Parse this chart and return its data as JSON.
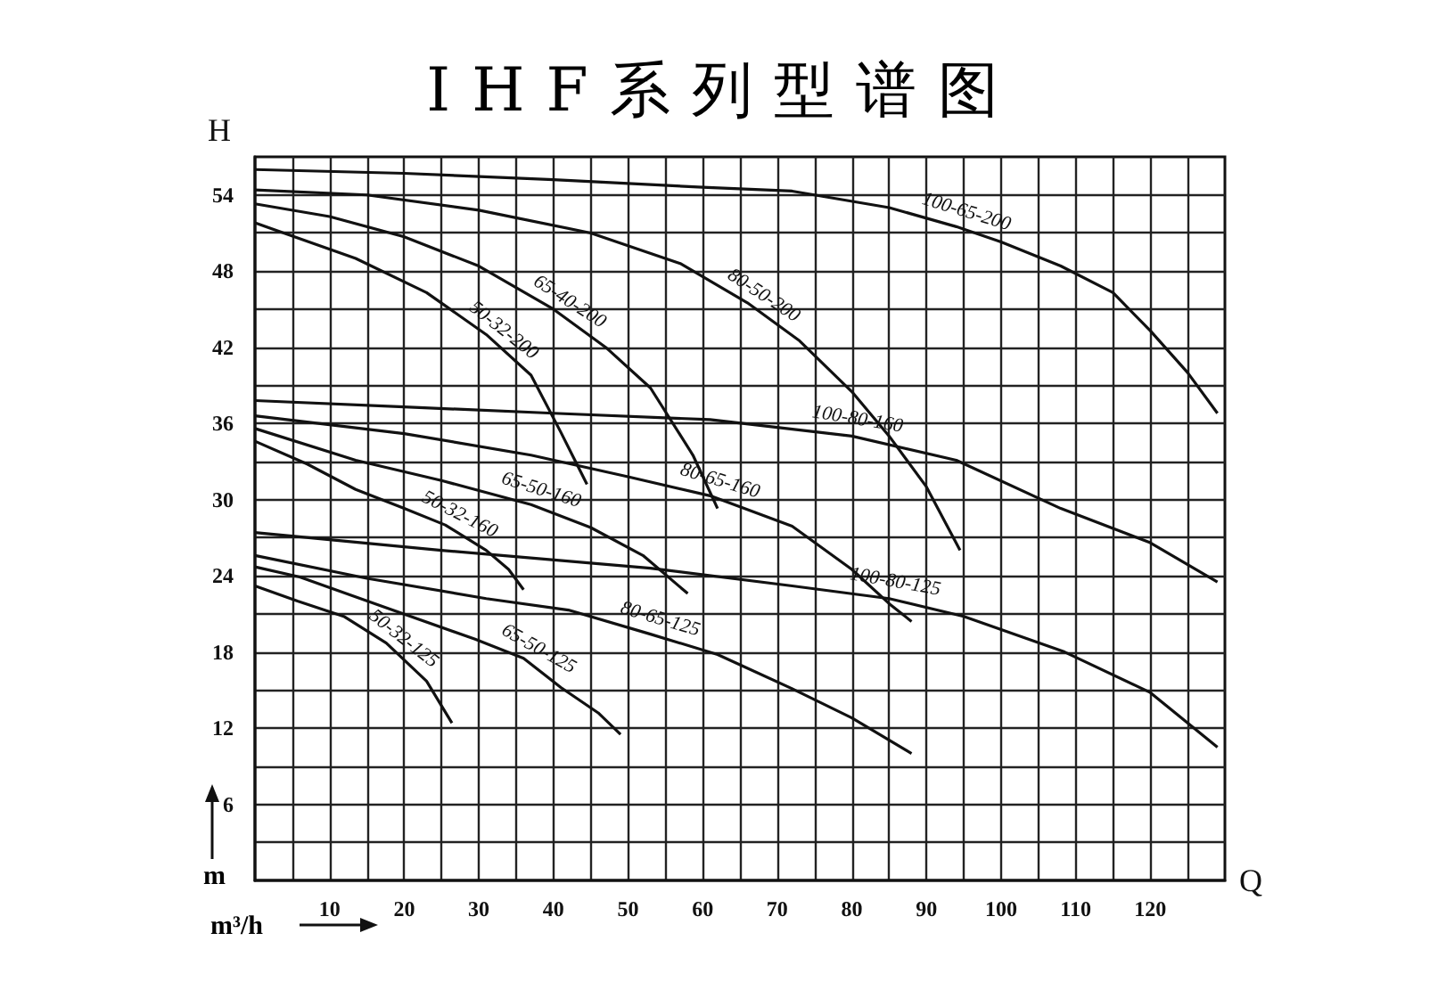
{
  "chart_data": {
    "type": "line",
    "title": "IHF系列型谱图",
    "xlabel": "Q",
    "ylabel": "H",
    "annotations": [
      "m³/h",
      "m"
    ],
    "xlim": [
      0,
      130
    ],
    "ylim": [
      0,
      57
    ],
    "xticks": [
      {
        "value": 5,
        "label": null
      },
      10,
      {
        "value": 15,
        "label": null
      },
      20,
      {
        "value": 25,
        "label": null
      },
      30,
      {
        "value": 35,
        "label": null
      },
      40,
      {
        "value": 45,
        "label": null
      },
      50,
      {
        "value": 55,
        "label": null
      },
      60,
      {
        "value": 65,
        "label": null
      },
      70,
      {
        "value": 75,
        "label": null
      },
      80,
      {
        "value": 85,
        "label": null
      },
      90,
      {
        "value": 95,
        "label": null
      },
      100,
      {
        "value": 105,
        "label": null
      },
      110,
      {
        "value": 115,
        "label": null
      },
      120,
      {
        "value": 125,
        "label": null
      }
    ],
    "yticks": [
      {
        "value": 3,
        "label": null
      },
      6,
      {
        "value": 9,
        "label": null
      },
      12,
      {
        "value": 15,
        "label": null
      },
      18,
      {
        "value": 21,
        "label": null
      },
      24,
      {
        "value": 27,
        "label": null
      },
      30,
      {
        "value": 33,
        "label": null
      },
      36,
      {
        "value": 39,
        "label": null
      },
      42,
      {
        "value": 45,
        "label": null
      },
      48,
      {
        "value": 51,
        "label": null
      },
      54
    ],
    "grid": true,
    "legend": false,
    "marker": "none",
    "line_style": "solid",
    "series": [
      {
        "name": "100-65-200",
        "color": "#111111",
        "x": [
          0,
          20,
          40,
          60,
          72,
          85,
          94,
          100,
          108,
          115,
          120,
          125,
          129
        ],
        "values": [
          56,
          55.7,
          55.2,
          54.6,
          54.3,
          53,
          51.5,
          50.3,
          48.4,
          46.3,
          43.3,
          40,
          36.8
        ]
      },
      {
        "name": "80-50-200",
        "color": "#111111",
        "x": [
          0,
          15,
          30,
          45,
          57,
          66,
          73,
          80,
          85,
          90,
          94.5
        ],
        "values": [
          54.4,
          54,
          52.8,
          51,
          48.6,
          45.5,
          42.5,
          38.5,
          35,
          31,
          26
        ]
      },
      {
        "name": "65-40-200",
        "color": "#111111",
        "x": [
          0,
          10,
          20,
          30,
          40,
          47,
          53,
          58.7,
          62
        ],
        "values": [
          53.3,
          52.3,
          50.7,
          48.4,
          45,
          42,
          38.8,
          33.5,
          29.3
        ]
      },
      {
        "name": "50-32-200",
        "color": "#111111",
        "x": [
          0,
          13.5,
          23,
          31,
          37,
          41,
          44.5
        ],
        "values": [
          51.8,
          49,
          46.3,
          43,
          39.8,
          35.3,
          31.2
        ]
      },
      {
        "name": "100-80-160",
        "color": "#111111",
        "x": [
          0,
          20,
          40,
          61,
          80,
          94,
          108,
          120,
          129
        ],
        "values": [
          37.8,
          37.3,
          36.8,
          36.3,
          35,
          33.1,
          29.3,
          26.6,
          23.5
        ]
      },
      {
        "name": "80-65-160",
        "color": "#111111",
        "x": [
          0,
          20,
          37,
          50,
          61,
          72,
          80,
          85,
          88
        ],
        "values": [
          36.6,
          35.2,
          33.5,
          31.8,
          30.3,
          27.9,
          24.5,
          21.8,
          20.4
        ]
      },
      {
        "name": "65-50-160",
        "color": "#111111",
        "x": [
          0,
          13.5,
          25,
          37,
          45,
          52,
          58
        ],
        "values": [
          35.6,
          33.1,
          31.5,
          29.6,
          27.8,
          25.6,
          22.6
        ]
      },
      {
        "name": "50-32-160",
        "color": "#111111",
        "x": [
          0,
          7,
          13.5,
          20,
          25.5,
          31,
          34,
          36
        ],
        "values": [
          34.6,
          32.8,
          30.8,
          29.3,
          28,
          26,
          24.5,
          22.9
        ]
      },
      {
        "name": "100-80-125",
        "color": "#111111",
        "x": [
          0,
          25,
          53,
          72,
          85,
          95,
          108.5,
          120,
          129
        ],
        "values": [
          27.4,
          26,
          24.6,
          23.2,
          22.2,
          20.8,
          18,
          14.8,
          10.5
        ]
      },
      {
        "name": "80-65-125",
        "color": "#111111",
        "x": [
          0,
          15,
          31,
          42,
          53,
          62,
          72,
          80,
          88
        ],
        "values": [
          25.6,
          23.8,
          22.2,
          21.3,
          19.4,
          17.8,
          15.1,
          12.8,
          10
        ]
      },
      {
        "name": "65-50-125",
        "color": "#111111",
        "x": [
          0,
          6,
          17.5,
          29.5,
          36,
          41,
          46,
          49
        ],
        "values": [
          24.7,
          23.9,
          21.5,
          19,
          17.5,
          15.2,
          13.2,
          11.5
        ]
      },
      {
        "name": "50-32-125",
        "color": "#111111",
        "x": [
          0,
          5.7,
          11.9,
          17.6,
          23,
          26.4
        ],
        "values": [
          23.2,
          22,
          20.8,
          18.7,
          15.7,
          12.4
        ]
      }
    ]
  }
}
